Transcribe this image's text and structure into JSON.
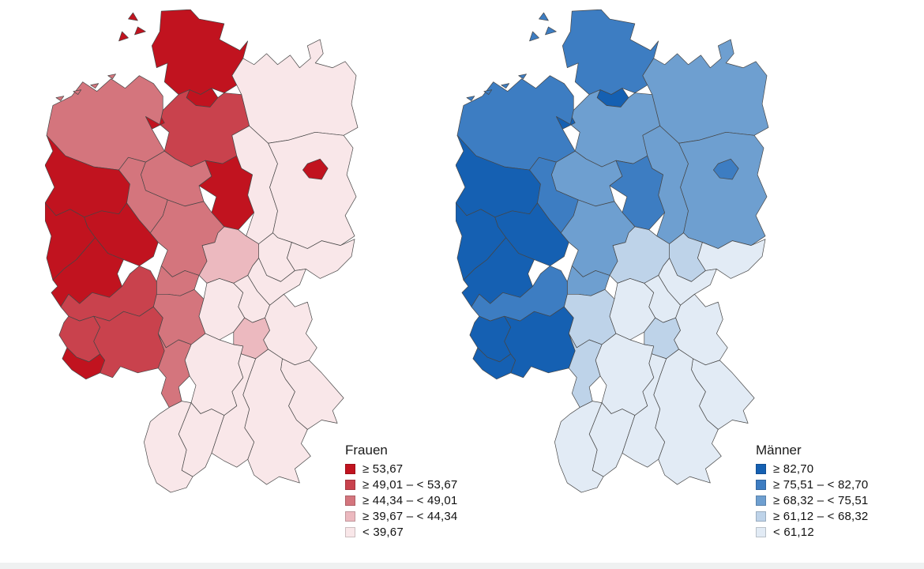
{
  "figure": {
    "type": "choropleth-map-pair",
    "subject": "Germany, rates by region (NUTS-2 / Regierungsbezirke), women vs men",
    "bottom_band_color": "#eff1f1",
    "border_color": "#454545"
  },
  "chart_data": [
    {
      "type": "heatmap",
      "title": "Frauen",
      "legend_position": "bottom-right of left map",
      "palette": [
        "#C1131F",
        "#C9424D",
        "#D4757D",
        "#ECB9BF",
        "#F9E7E9"
      ],
      "classes": [
        "≥ 53,67",
        "≥ 49,01 – < 53,67",
        "≥ 44,34 – < 49,01",
        "≥ 39,67 – < 44,34",
        "< 39,67"
      ],
      "regions": {
        "schleswig_holstein": 1,
        "nordfriesische_inseln": 1,
        "hamburg": 1,
        "mecklenburg_vorpommern": 5,
        "weser_ems": 3,
        "ostfriesische_inseln": 3,
        "bremen": 1,
        "lueneburg": 2,
        "hannover": 3,
        "braunschweig": 1,
        "sachsen_anhalt": 5,
        "brandenburg": 5,
        "berlin": 1,
        "muenster": 1,
        "detmold": 3,
        "duesseldorf": 1,
        "arnsberg": 1,
        "koeln": 1,
        "kassel": 3,
        "giessen": 3,
        "darmstadt": 3,
        "koblenz": 2,
        "trier": 2,
        "rheinhessen_pfalz": 2,
        "saarland": 1,
        "leipzig": 5,
        "dresden": 5,
        "chemnitz": 5,
        "thueringen": 4,
        "unterfranken": 5,
        "oberfranken": 5,
        "mittelfranken": 4,
        "oberpfalz": 5,
        "niederbayern": 5,
        "oberbayern": 5,
        "schwaben": 5,
        "stuttgart": 5,
        "karlsruhe": 3,
        "tuebingen": 5,
        "freiburg": 5
      }
    },
    {
      "type": "heatmap",
      "title": "Männer",
      "legend_position": "bottom-right of right map",
      "palette": [
        "#1560B2",
        "#3D7DC2",
        "#6E9FD0",
        "#BED3E9",
        "#E2EBF5"
      ],
      "classes": [
        "≥ 82,70",
        "≥ 75,51 – < 82,70",
        "≥ 68,32 – < 75,51",
        "≥ 61,12 – < 68,32",
        "< 61,12"
      ],
      "regions": {
        "schleswig_holstein": 2,
        "nordfriesische_inseln": 2,
        "hamburg": 1,
        "mecklenburg_vorpommern": 3,
        "weser_ems": 2,
        "ostfriesische_inseln": 2,
        "bremen": 1,
        "lueneburg": 3,
        "hannover": 3,
        "braunschweig": 2,
        "sachsen_anhalt": 3,
        "brandenburg": 3,
        "berlin": 2,
        "muenster": 1,
        "detmold": 2,
        "duesseldorf": 1,
        "arnsberg": 1,
        "koeln": 1,
        "kassel": 3,
        "giessen": 3,
        "darmstadt": 4,
        "koblenz": 2,
        "trier": 1,
        "rheinhessen_pfalz": 1,
        "saarland": 1,
        "leipzig": 4,
        "dresden": 5,
        "chemnitz": 5,
        "thueringen": 4,
        "unterfranken": 5,
        "oberfranken": 5,
        "mittelfranken": 4,
        "oberpfalz": 5,
        "niederbayern": 5,
        "oberbayern": 5,
        "schwaben": 5,
        "stuttgart": 5,
        "karlsruhe": 4,
        "tuebingen": 5,
        "freiburg": 5
      }
    }
  ]
}
